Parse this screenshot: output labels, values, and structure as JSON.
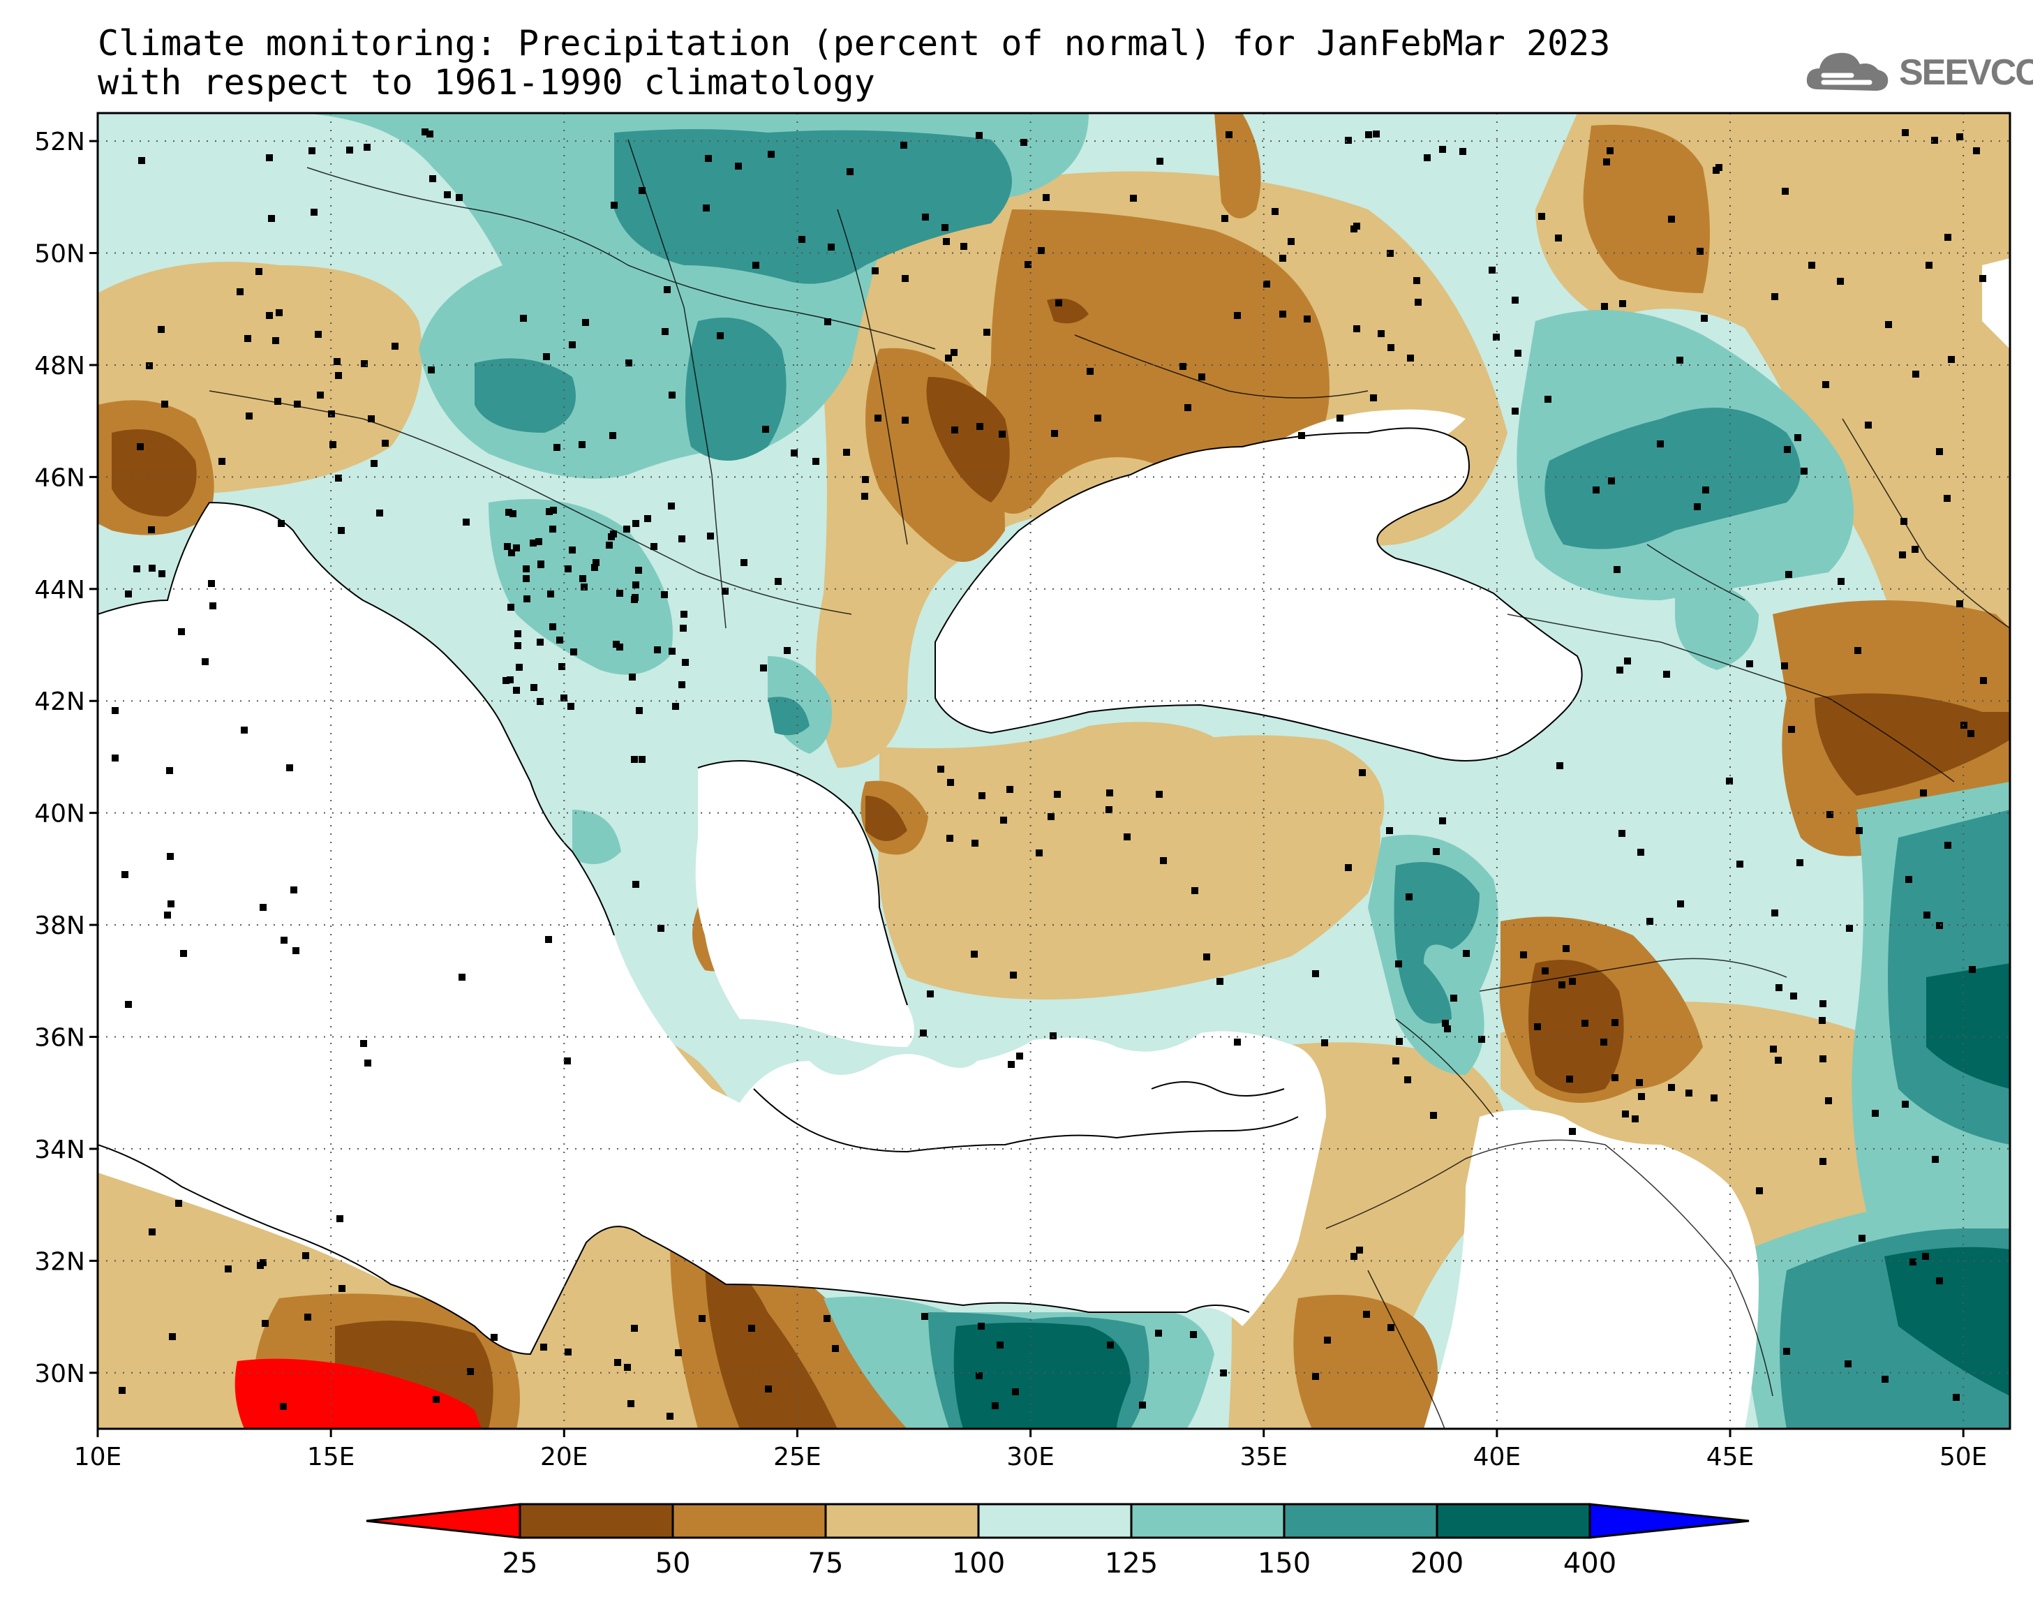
{
  "title": {
    "line1": "Climate monitoring: Precipitation (percent of normal) for JanFebMar 2023",
    "line2": "with respect to 1961-1990 climatology"
  },
  "logo": {
    "text": "SEEVCCC",
    "icon": "cloud-icon"
  },
  "map": {
    "lon_range": [
      10,
      51
    ],
    "lat_range": [
      29,
      52.5
    ],
    "lon_ticks": [
      "10E",
      "15E",
      "20E",
      "25E",
      "30E",
      "35E",
      "40E",
      "45E",
      "50E"
    ],
    "lat_ticks": [
      "30N",
      "32N",
      "34N",
      "36N",
      "38N",
      "40N",
      "42N",
      "44N",
      "46N",
      "48N",
      "50N",
      "52N"
    ],
    "grid": "dotted"
  },
  "legend": {
    "labels": [
      "25",
      "50",
      "75",
      "100",
      "125",
      "150",
      "200",
      "400"
    ],
    "colors": {
      "under_25": "#ff0000",
      "c25_50": "#8b4e10",
      "c50_75": "#bd8031",
      "c75_100": "#dfc07e",
      "c100_125": "#c8ebe4",
      "c125_150": "#80cbc0",
      "c150_200": "#359591",
      "c200_400": "#00665e",
      "over_400": "#0000ff"
    }
  }
}
